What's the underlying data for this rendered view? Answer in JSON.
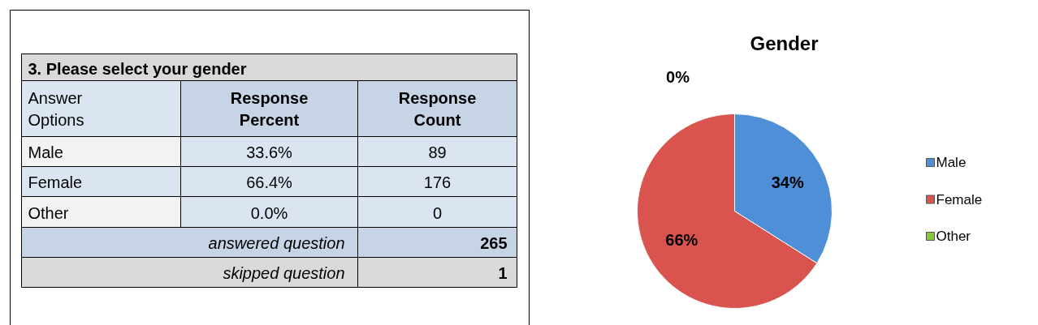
{
  "chart_data": [
    {
      "type": "other",
      "title": "3.   Please select your gender",
      "xlabel": "Answer Options",
      "categories": [
        "Male",
        "Female",
        "Other"
      ],
      "series": [
        {
          "name": "Response Percent",
          "values": [
            33.6,
            66.4,
            0.0
          ],
          "value_labels": [
            "33.6%",
            "66.4%",
            "0.0%"
          ]
        },
        {
          "name": "Response Count",
          "values": [
            89,
            176,
            0
          ],
          "value_labels": [
            "89",
            "176",
            "0"
          ]
        }
      ],
      "annotations": [
        "answered question",
        "265",
        "skipped question",
        "1"
      ]
    },
    {
      "type": "pie",
      "title": "Gender",
      "categories": [
        "Male",
        "Female",
        "Other"
      ],
      "values": [
        34,
        66,
        0
      ],
      "colors": [
        "#4f8fd8",
        "#d9534f",
        "#8cc63f"
      ],
      "value_labels": [
        "34%",
        "66%",
        "0%"
      ],
      "legend": "right"
    }
  ]
}
